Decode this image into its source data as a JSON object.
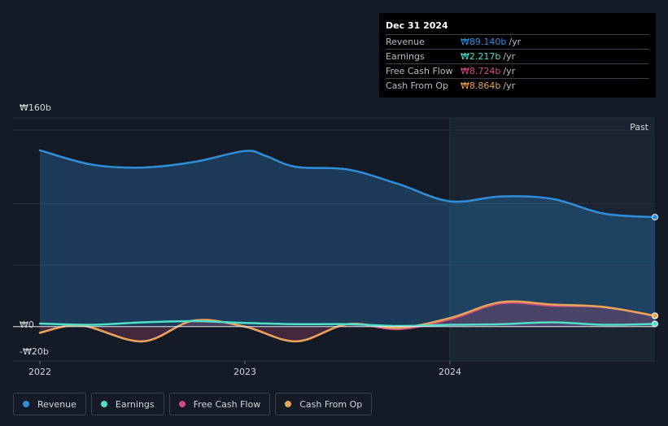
{
  "chart_data": {
    "type": "area",
    "y_ticks": [
      "₩160b",
      "₩0",
      "-₩20b"
    ],
    "ylim": [
      -20,
      160
    ],
    "x_ticks": [
      {
        "label": "2022",
        "x": 2022.0
      },
      {
        "label": "2023",
        "x": 2023.0
      },
      {
        "label": "2024",
        "x": 2024.0
      }
    ],
    "xlim": [
      2021.87,
      2024.99
    ],
    "past_label": "Past",
    "past_start": 2024.0,
    "series": [
      {
        "name": "Revenue",
        "color": "#2f8fdb",
        "fill": true,
        "points": [
          [
            2022.0,
            143.5
          ],
          [
            2022.25,
            132
          ],
          [
            2022.5,
            129.5
          ],
          [
            2022.75,
            134
          ],
          [
            2023.0,
            143
          ],
          [
            2023.1,
            139
          ],
          [
            2023.25,
            130
          ],
          [
            2023.5,
            128
          ],
          [
            2023.75,
            116
          ],
          [
            2024.0,
            102
          ],
          [
            2024.25,
            106
          ],
          [
            2024.5,
            104
          ],
          [
            2024.75,
            92
          ],
          [
            2025.0,
            89.14
          ]
        ]
      },
      {
        "name": "Earnings",
        "color": "#4fe0c8",
        "fill": false,
        "points": [
          [
            2022.0,
            2.5
          ],
          [
            2022.25,
            1.5
          ],
          [
            2022.5,
            3.5
          ],
          [
            2022.75,
            4.5
          ],
          [
            2023.0,
            3
          ],
          [
            2023.25,
            2
          ],
          [
            2023.5,
            2
          ],
          [
            2023.75,
            0.5
          ],
          [
            2024.0,
            1.5
          ],
          [
            2024.25,
            2
          ],
          [
            2024.5,
            3.5
          ],
          [
            2024.75,
            1.5
          ],
          [
            2025.0,
            2.217
          ]
        ]
      },
      {
        "name": "Free Cash Flow",
        "color": "#cf4c84",
        "fill": true,
        "points": [
          [
            2022.0,
            -5
          ],
          [
            2022.2,
            1
          ],
          [
            2022.5,
            -12
          ],
          [
            2022.75,
            5
          ],
          [
            2023.0,
            0
          ],
          [
            2023.25,
            -12
          ],
          [
            2023.5,
            2
          ],
          [
            2023.75,
            -2
          ],
          [
            2024.0,
            6
          ],
          [
            2024.25,
            19
          ],
          [
            2024.5,
            17
          ],
          [
            2024.75,
            16
          ],
          [
            2025.0,
            8.724
          ]
        ]
      },
      {
        "name": "Cash From Op",
        "color": "#e8a558",
        "fill": false,
        "points": [
          [
            2022.0,
            -5
          ],
          [
            2022.2,
            1
          ],
          [
            2022.5,
            -12
          ],
          [
            2022.75,
            5
          ],
          [
            2023.0,
            0
          ],
          [
            2023.25,
            -12
          ],
          [
            2023.5,
            2
          ],
          [
            2023.75,
            -1
          ],
          [
            2024.0,
            7
          ],
          [
            2024.25,
            20
          ],
          [
            2024.5,
            18
          ],
          [
            2024.75,
            16
          ],
          [
            2025.0,
            8.864
          ]
        ]
      }
    ]
  },
  "tooltip": {
    "date": "Dec 31 2024",
    "rows": [
      {
        "label": "Revenue",
        "value": "₩89.140b",
        "unit": "/yr",
        "color": "#2f8fdb"
      },
      {
        "label": "Earnings",
        "value": "₩2.217b",
        "unit": "/yr",
        "color": "#4fe0c8"
      },
      {
        "label": "Free Cash Flow",
        "value": "₩8.724b",
        "unit": "/yr",
        "color": "#cf4c84"
      },
      {
        "label": "Cash From Op",
        "value": "₩8.864b",
        "unit": "/yr",
        "color": "#e8a558"
      }
    ]
  },
  "legend": [
    {
      "label": "Revenue",
      "color": "#2f8fdb"
    },
    {
      "label": "Earnings",
      "color": "#4fe0c8"
    },
    {
      "label": "Free Cash Flow",
      "color": "#cf4c84"
    },
    {
      "label": "Cash From Op",
      "color": "#e8a558"
    }
  ]
}
